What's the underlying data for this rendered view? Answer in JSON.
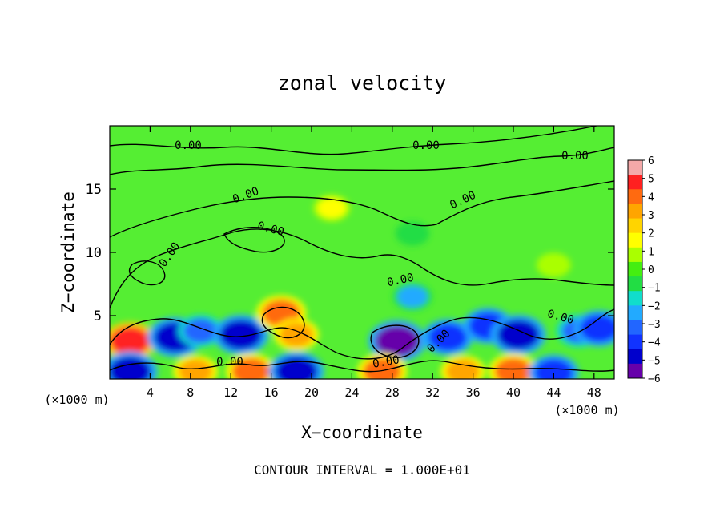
{
  "chart_data": {
    "type": "heatmap",
    "title": "zonal velocity",
    "xlabel": "X−coordinate",
    "ylabel": "Z−coordinate",
    "x_unit_left": "(×1000 m)",
    "x_unit_right": "(×1000 m)",
    "xlim": [
      0,
      50
    ],
    "ylim": [
      0,
      20
    ],
    "x_ticks": [
      4,
      8,
      12,
      16,
      20,
      24,
      28,
      32,
      36,
      40,
      44,
      48
    ],
    "y_ticks": [
      5,
      10,
      15
    ],
    "colorbar_ticks": [
      "6",
      "5",
      "4",
      "3",
      "2",
      "1",
      "0",
      "−1",
      "−2",
      "−3",
      "−4",
      "−5",
      "−6"
    ],
    "colorbar_range": [
      -6,
      6
    ],
    "colorbar_colors": [
      "#f4a8a8",
      "#ff2020",
      "#ff6a10",
      "#ffa500",
      "#ffd400",
      "#ffff00",
      "#aaff00",
      "#44ee11",
      "#22dd44",
      "#11ddcc",
      "#22aaff",
      "#2266ff",
      "#1133ff",
      "#0000cc",
      "#6600aa"
    ],
    "background_color": "#55ee33",
    "contour_labels": [
      "0.00",
      "0.00",
      "0.00",
      "0.00",
      "0.00",
      "0.00",
      "0.00",
      "0.00",
      "0.00",
      "0.00",
      "0.00",
      "0.00"
    ],
    "features": [
      {
        "x": 2.0,
        "z": 3.0,
        "value": 4.5
      },
      {
        "x": 6.5,
        "z": 3.3,
        "value": -5
      },
      {
        "x": 9.0,
        "z": 3.8,
        "value": -3
      },
      {
        "x": 13.0,
        "z": 3.5,
        "value": -5
      },
      {
        "x": 17.0,
        "z": 5.2,
        "value": 4
      },
      {
        "x": 18.5,
        "z": 3.5,
        "value": 3
      },
      {
        "x": 28.5,
        "z": 3.0,
        "value": -5.5
      },
      {
        "x": 33.5,
        "z": 3.3,
        "value": -4
      },
      {
        "x": 37.5,
        "z": 4.2,
        "value": -4
      },
      {
        "x": 40.5,
        "z": 3.5,
        "value": -5
      },
      {
        "x": 46.5,
        "z": 3.8,
        "value": -3
      },
      {
        "x": 48.5,
        "z": 4.0,
        "value": -4
      },
      {
        "x": 2.0,
        "z": 0.6,
        "value": -5
      },
      {
        "x": 8.5,
        "z": 0.6,
        "value": 3
      },
      {
        "x": 14.0,
        "z": 0.6,
        "value": 4
      },
      {
        "x": 18.5,
        "z": 0.6,
        "value": -5
      },
      {
        "x": 27.0,
        "z": 0.6,
        "value": 4
      },
      {
        "x": 35.0,
        "z": 0.6,
        "value": 3
      },
      {
        "x": 40.0,
        "z": 0.6,
        "value": 4
      },
      {
        "x": 44.0,
        "z": 0.5,
        "value": -4
      },
      {
        "x": 30.0,
        "z": 6.5,
        "value": -2
      },
      {
        "x": 22.0,
        "z": 13.5,
        "value": 1.5
      },
      {
        "x": 30.0,
        "z": 11.5,
        "value": -1
      },
      {
        "x": 44.0,
        "z": 9.0,
        "value": 1
      }
    ]
  },
  "footer": {
    "contour_interval": "CONTOUR INTERVAL = 1.000E+01"
  }
}
